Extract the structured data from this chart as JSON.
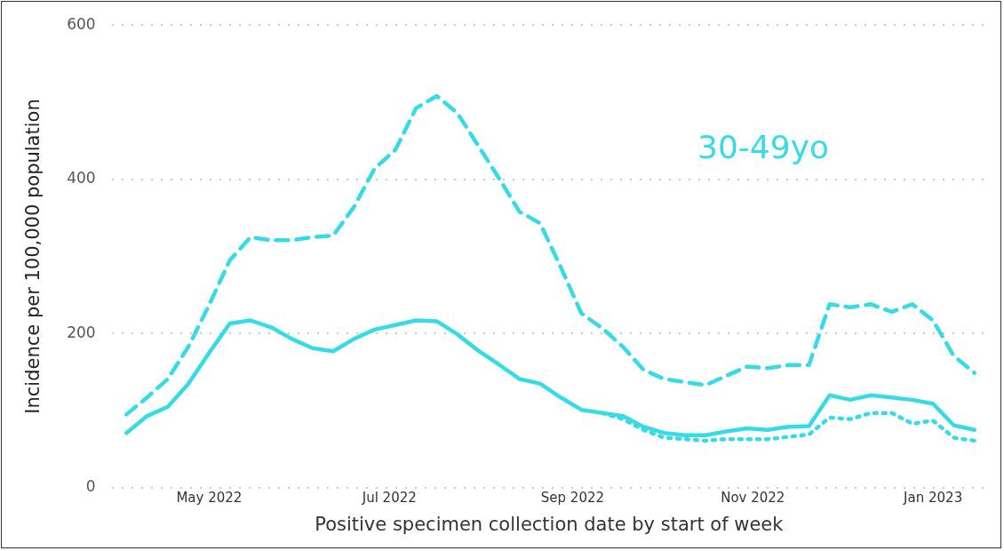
{
  "chart_data": {
    "type": "line",
    "xlabel": "Positive specimen collection date by start of week",
    "ylabel": "Incidence per 100,000 population",
    "annotations": [
      "30-49yo"
    ],
    "x": [
      "2022-04-03",
      "2022-04-10",
      "2022-04-17",
      "2022-04-24",
      "2022-05-01",
      "2022-05-08",
      "2022-05-15",
      "2022-05-22",
      "2022-05-29",
      "2022-06-05",
      "2022-06-12",
      "2022-06-19",
      "2022-06-26",
      "2022-07-03",
      "2022-07-10",
      "2022-07-17",
      "2022-07-24",
      "2022-07-31",
      "2022-08-07",
      "2022-08-14",
      "2022-08-21",
      "2022-08-28",
      "2022-09-04",
      "2022-09-11",
      "2022-09-18",
      "2022-09-25",
      "2022-10-02",
      "2022-10-09",
      "2022-10-16",
      "2022-10-23",
      "2022-10-30",
      "2022-11-06",
      "2022-11-13",
      "2022-11-20",
      "2022-11-27",
      "2022-12-04",
      "2022-12-11",
      "2022-12-18",
      "2022-12-25",
      "2023-01-01",
      "2023-01-08",
      "2023-01-15"
    ],
    "series": [
      {
        "color": "#36dbe5",
        "line_style": "dashed",
        "values": [
          95,
          117,
          141,
          183,
          237,
          295,
          325,
          321,
          321,
          325,
          327,
          364,
          414,
          438,
          492,
          508,
          486,
          444,
          402,
          358,
          343,
          286,
          226,
          207,
          183,
          153,
          141,
          137,
          133,
          145,
          157,
          155,
          159,
          159,
          238,
          234,
          238,
          228,
          238,
          217,
          171,
          149
        ]
      },
      {
        "color": "#36dbe5",
        "line_style": "solid",
        "values": [
          71,
          93,
          105,
          135,
          175,
          213,
          217,
          208,
          193,
          181,
          177,
          193,
          205,
          211,
          217,
          216,
          199,
          178,
          160,
          141,
          135,
          117,
          101,
          97,
          93,
          79,
          71,
          68,
          68,
          73,
          77,
          75,
          79,
          80,
          120,
          114,
          120,
          117,
          114,
          109,
          81,
          75
        ]
      },
      {
        "color": "#36dbe5",
        "line_style": "dotted",
        "values": [
          null,
          null,
          null,
          null,
          null,
          null,
          null,
          null,
          null,
          null,
          null,
          null,
          null,
          null,
          null,
          null,
          null,
          null,
          null,
          null,
          null,
          null,
          null,
          97,
          89,
          75,
          65,
          63,
          61,
          63,
          63,
          63,
          66,
          69,
          91,
          89,
          97,
          97,
          83,
          87,
          65,
          61
        ]
      }
    ],
    "xlim": [
      "2022-03-29",
      "2023-01-19"
    ],
    "xticks": [
      {
        "value": "2022-05-01",
        "label": "May 2022"
      },
      {
        "value": "2022-07-01",
        "label": "Jul 2022"
      },
      {
        "value": "2022-09-01",
        "label": "Sep 2022"
      },
      {
        "value": "2022-11-01",
        "label": "Nov 2022"
      },
      {
        "value": "2023-01-01",
        "label": "Jan 2023"
      }
    ],
    "ylim": [
      0,
      600
    ],
    "yticks": [
      0,
      200,
      400,
      600
    ],
    "grid": "y",
    "legend": false,
    "marker": "none"
  }
}
